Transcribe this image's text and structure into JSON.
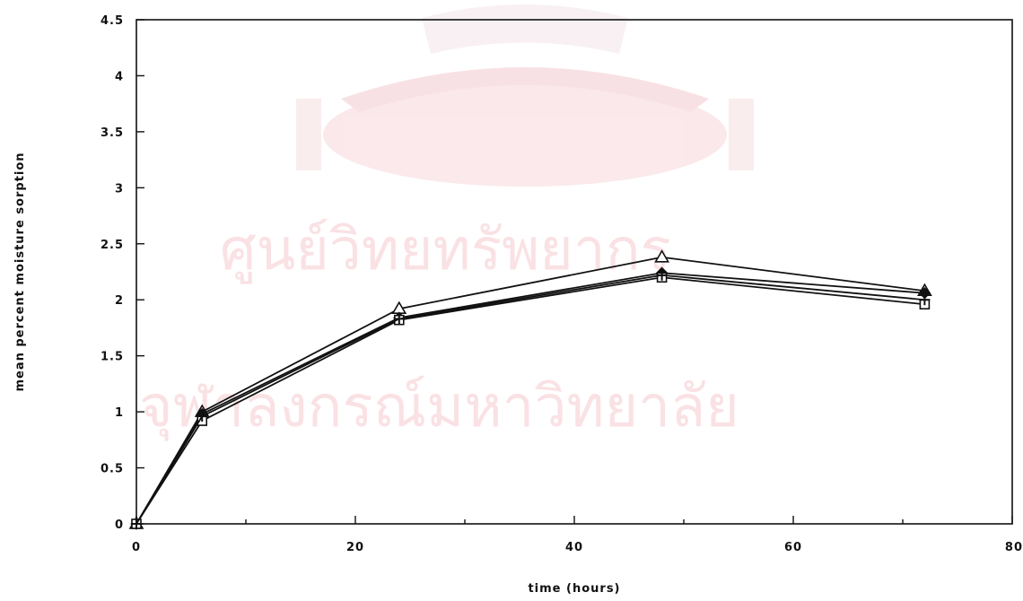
{
  "chart_data": {
    "type": "line",
    "title": "",
    "xlabel": "time (hours)",
    "ylabel": "mean percent moisture sorption",
    "xlim": [
      0,
      80
    ],
    "ylim": [
      0,
      4.5
    ],
    "x_ticks": [
      "0",
      "20",
      "40",
      "60",
      "80"
    ],
    "y_ticks": [
      "0",
      "0.5",
      "1",
      "1.5",
      "2",
      "2.5",
      "3",
      "3.5",
      "4",
      "4.5"
    ],
    "grid": false,
    "x": [
      0,
      6,
      24,
      48,
      72
    ],
    "series": [
      {
        "marker": "triangle",
        "values": [
          0,
          1.0,
          1.92,
          2.38,
          2.08
        ]
      },
      {
        "marker": "filled-diamond",
        "values": [
          0,
          0.98,
          1.84,
          2.24,
          2.06
        ]
      },
      {
        "marker": "square",
        "values": [
          0,
          0.92,
          1.82,
          2.2,
          1.96
        ]
      },
      {
        "marker": "plus",
        "values": [
          0,
          0.96,
          1.83,
          2.22,
          2.0
        ]
      }
    ]
  },
  "watermark": {
    "line1": "ศูนย์วิทยทรัพยากร",
    "line2": "จุฬาลงกรณ์มหาวิทยาลัย",
    "emblem": "university-emblem-icon",
    "color": "#f6c9cf"
  }
}
